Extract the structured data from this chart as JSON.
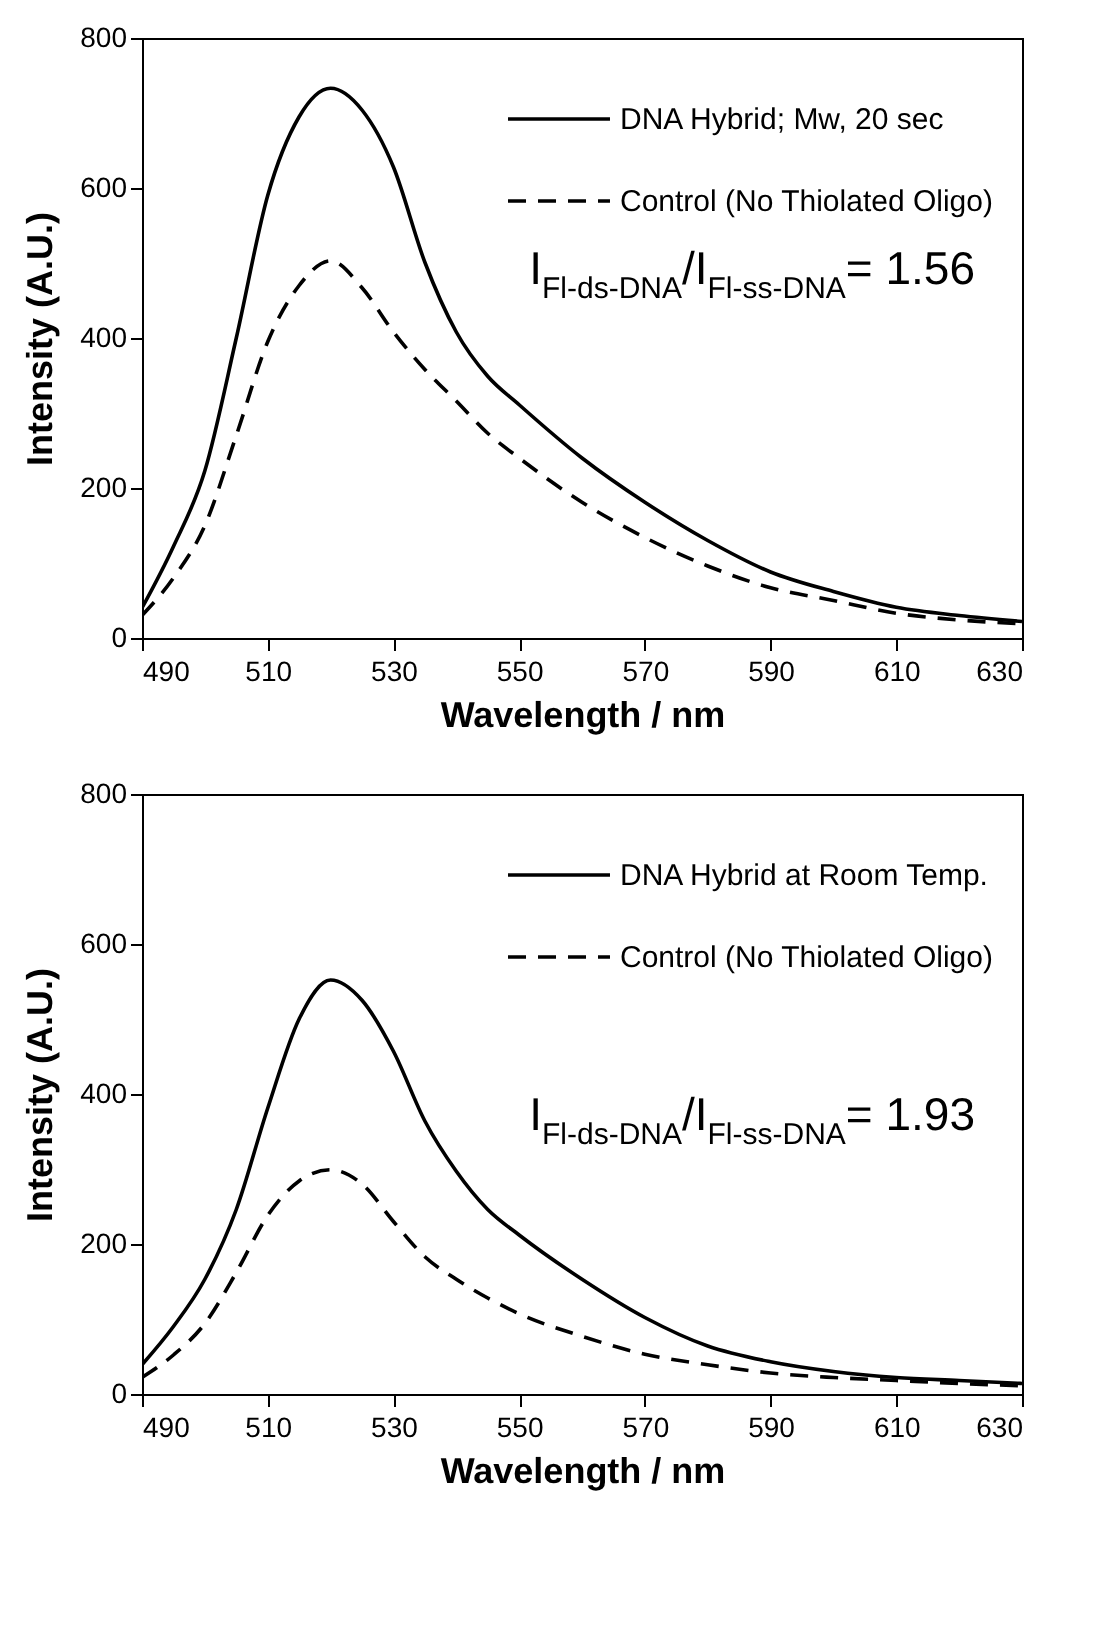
{
  "chart_data": [
    {
      "type": "line",
      "x": [
        490,
        495,
        500,
        505,
        510,
        515,
        520,
        525,
        530,
        535,
        540,
        545,
        550,
        560,
        570,
        580,
        590,
        600,
        610,
        620,
        630
      ],
      "series": [
        {
          "name": "DNA Hybrid; Mw, 20 sec",
          "color": "#000000",
          "line_style": "solid",
          "values": [
            40,
            122,
            223,
            400,
            590,
            695,
            733,
            704,
            628,
            501,
            408,
            349,
            311,
            240,
            181,
            130,
            88,
            62,
            41,
            30,
            22
          ]
        },
        {
          "name": "Control (No Thiolated Oligo)",
          "color": "#000000",
          "line_style": "dashed",
          "values": [
            30,
            80,
            150,
            270,
            395,
            470,
            503,
            467,
            408,
            358,
            316,
            273,
            240,
            181,
            134,
            96,
            67,
            50,
            33,
            24,
            19
          ]
        }
      ],
      "xlabel": "Wavelength / nm",
      "ylabel": "Intensity (A.U.)",
      "xlim": [
        490,
        630
      ],
      "ylim": [
        0,
        800
      ],
      "xticks": [
        490,
        510,
        530,
        550,
        570,
        590,
        610,
        630
      ],
      "yticks": [
        0,
        200,
        400,
        600,
        800
      ],
      "legend": "top right",
      "grid": false,
      "annotations": [
        "I$_{Fl-ds-DNA}$/I$_{Fl-ss-DNA}$= 1.56"
      ]
    },
    {
      "type": "line",
      "x": [
        490,
        495,
        500,
        505,
        510,
        515,
        520,
        525,
        530,
        535,
        540,
        545,
        550,
        560,
        570,
        580,
        590,
        600,
        610,
        620,
        630
      ],
      "series": [
        {
          "name": "DNA Hybrid at Room Temp.",
          "color": "#000000",
          "line_style": "solid",
          "values": [
            39,
            90,
            153,
            246,
            381,
            500,
            552,
            525,
            457,
            364,
            297,
            246,
            212,
            153,
            102,
            64,
            43,
            30,
            22,
            18,
            14
          ]
        },
        {
          "name": "Control (No Thiolated Oligo)",
          "color": "#000000",
          "line_style": "dashed",
          "values": [
            22,
            52,
            94,
            162,
            238,
            284,
            299,
            280,
            230,
            183,
            153,
            128,
            107,
            77,
            53,
            39,
            28,
            22,
            18,
            14,
            11
          ]
        }
      ],
      "xlabel": "Wavelength / nm",
      "ylabel": "Intensity (A.U.)",
      "xlim": [
        490,
        630
      ],
      "ylim": [
        0,
        800
      ],
      "xticks": [
        490,
        510,
        530,
        550,
        570,
        590,
        610,
        630
      ],
      "yticks": [
        0,
        200,
        400,
        600,
        800
      ],
      "legend": "top right",
      "grid": false,
      "annotations": [
        "I$_{Fl-ds-DNA}$/I$_{Fl-ss-DNA}$= 1.93"
      ]
    }
  ]
}
